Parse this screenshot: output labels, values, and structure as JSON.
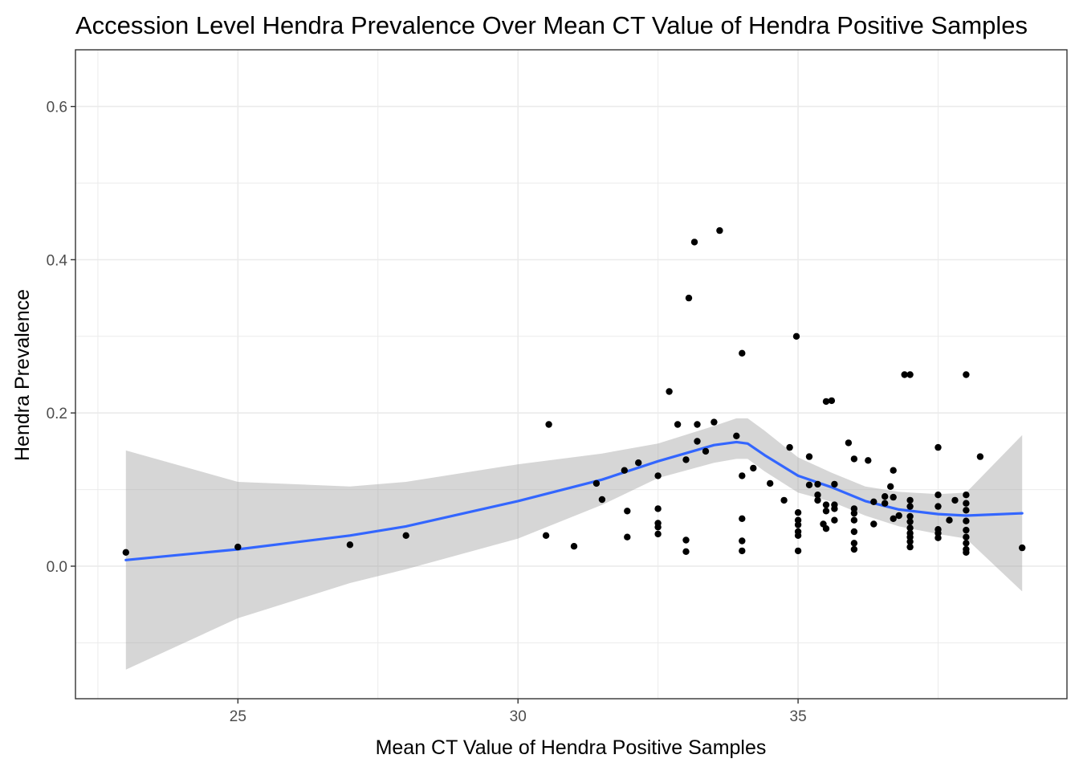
{
  "chart_data": {
    "type": "scatter",
    "title": "Accession Level Hendra Prevalence Over Mean CT Value of Hendra Positive Samples",
    "xlabel": "Mean CT Value of Hendra Positive Samples",
    "ylabel": "Hendra Prevalence",
    "xlim": [
      22.1,
      39.8
    ],
    "ylim": [
      -0.173,
      0.674
    ],
    "x_ticks": [
      25,
      30,
      35
    ],
    "x_tick_labels": [
      "25",
      "30",
      "35"
    ],
    "x_minor": [
      22.5,
      27.5,
      32.5,
      37.5
    ],
    "y_ticks": [
      0.0,
      0.2,
      0.4,
      0.6
    ],
    "y_tick_labels": [
      "0.0",
      "0.2",
      "0.4",
      "0.6"
    ],
    "y_minor": [
      -0.1,
      0.1,
      0.3,
      0.5
    ],
    "grid": true,
    "colors": {
      "points": "#000000",
      "smooth_line": "#3366ff",
      "ribbon": "#999999",
      "grid": "#ebebeb",
      "panel_border": "#333333",
      "tick_label": "#4d4d4d"
    },
    "points": [
      [
        23.0,
        0.018
      ],
      [
        25.0,
        0.025
      ],
      [
        27.0,
        0.028
      ],
      [
        28.0,
        0.04
      ],
      [
        30.5,
        0.04
      ],
      [
        30.55,
        0.185
      ],
      [
        31.0,
        0.026
      ],
      [
        31.4,
        0.108
      ],
      [
        31.5,
        0.087
      ],
      [
        31.9,
        0.125
      ],
      [
        31.95,
        0.072
      ],
      [
        31.95,
        0.038
      ],
      [
        32.15,
        0.135
      ],
      [
        32.5,
        0.118
      ],
      [
        32.5,
        0.075
      ],
      [
        32.5,
        0.056
      ],
      [
        32.5,
        0.051
      ],
      [
        32.5,
        0.042
      ],
      [
        32.7,
        0.228
      ],
      [
        32.85,
        0.185
      ],
      [
        33.0,
        0.139
      ],
      [
        33.0,
        0.034
      ],
      [
        33.0,
        0.019
      ],
      [
        33.05,
        0.35
      ],
      [
        33.15,
        0.423
      ],
      [
        33.2,
        0.163
      ],
      [
        33.2,
        0.185
      ],
      [
        33.35,
        0.15
      ],
      [
        33.5,
        0.188
      ],
      [
        33.6,
        0.438
      ],
      [
        33.9,
        0.17
      ],
      [
        34.0,
        0.278
      ],
      [
        34.0,
        0.118
      ],
      [
        34.0,
        0.062
      ],
      [
        34.0,
        0.033
      ],
      [
        34.0,
        0.02
      ],
      [
        34.2,
        0.128
      ],
      [
        34.5,
        0.108
      ],
      [
        34.75,
        0.086
      ],
      [
        34.85,
        0.155
      ],
      [
        34.97,
        0.3
      ],
      [
        35.0,
        0.07
      ],
      [
        35.0,
        0.06
      ],
      [
        35.0,
        0.054
      ],
      [
        35.0,
        0.045
      ],
      [
        35.0,
        0.04
      ],
      [
        35.0,
        0.02
      ],
      [
        35.2,
        0.143
      ],
      [
        35.2,
        0.106
      ],
      [
        35.35,
        0.107
      ],
      [
        35.35,
        0.093
      ],
      [
        35.35,
        0.086
      ],
      [
        35.45,
        0.055
      ],
      [
        35.5,
        0.215
      ],
      [
        35.5,
        0.08
      ],
      [
        35.5,
        0.072
      ],
      [
        35.5,
        0.049
      ],
      [
        35.6,
        0.216
      ],
      [
        35.65,
        0.107
      ],
      [
        35.65,
        0.08
      ],
      [
        35.65,
        0.075
      ],
      [
        35.65,
        0.06
      ],
      [
        35.9,
        0.161
      ],
      [
        36.0,
        0.14
      ],
      [
        36.0,
        0.075
      ],
      [
        36.0,
        0.069
      ],
      [
        36.0,
        0.06
      ],
      [
        36.0,
        0.045
      ],
      [
        36.0,
        0.03
      ],
      [
        36.0,
        0.022
      ],
      [
        36.25,
        0.138
      ],
      [
        36.35,
        0.084
      ],
      [
        36.35,
        0.055
      ],
      [
        36.55,
        0.091
      ],
      [
        36.55,
        0.082
      ],
      [
        36.65,
        0.104
      ],
      [
        36.7,
        0.125
      ],
      [
        36.7,
        0.09
      ],
      [
        36.7,
        0.062
      ],
      [
        36.8,
        0.066
      ],
      [
        36.9,
        0.25
      ],
      [
        37.0,
        0.25
      ],
      [
        37.0,
        0.086
      ],
      [
        37.0,
        0.078
      ],
      [
        37.0,
        0.065
      ],
      [
        37.0,
        0.058
      ],
      [
        37.0,
        0.05
      ],
      [
        37.0,
        0.043
      ],
      [
        37.0,
        0.038
      ],
      [
        37.0,
        0.032
      ],
      [
        37.0,
        0.025
      ],
      [
        37.5,
        0.155
      ],
      [
        37.5,
        0.093
      ],
      [
        37.5,
        0.078
      ],
      [
        37.5,
        0.048
      ],
      [
        37.5,
        0.043
      ],
      [
        37.5,
        0.037
      ],
      [
        37.7,
        0.06
      ],
      [
        37.8,
        0.086
      ],
      [
        38.0,
        0.25
      ],
      [
        38.0,
        0.093
      ],
      [
        38.0,
        0.082
      ],
      [
        38.0,
        0.073
      ],
      [
        38.0,
        0.059
      ],
      [
        38.0,
        0.047
      ],
      [
        38.0,
        0.038
      ],
      [
        38.0,
        0.03
      ],
      [
        38.0,
        0.022
      ],
      [
        38.0,
        0.018
      ],
      [
        38.25,
        0.143
      ],
      [
        39.0,
        0.024
      ]
    ],
    "smooth": {
      "x": [
        23.0,
        25.0,
        27.0,
        28.0,
        30.0,
        31.5,
        32.5,
        33.5,
        33.9,
        34.1,
        34.4,
        35.0,
        35.6,
        36.2,
        36.8,
        37.5,
        38.0,
        39.0
      ],
      "y": [
        0.008,
        0.022,
        0.04,
        0.052,
        0.085,
        0.113,
        0.137,
        0.158,
        0.162,
        0.16,
        0.145,
        0.118,
        0.103,
        0.085,
        0.074,
        0.068,
        0.066,
        0.069
      ],
      "lower": [
        -0.135,
        -0.068,
        -0.022,
        -0.004,
        0.036,
        0.08,
        0.115,
        0.135,
        0.14,
        0.14,
        0.124,
        0.096,
        0.084,
        0.066,
        0.052,
        0.042,
        0.036,
        -0.033
      ],
      "upper": [
        0.151,
        0.11,
        0.104,
        0.11,
        0.133,
        0.147,
        0.16,
        0.183,
        0.193,
        0.193,
        0.177,
        0.142,
        0.122,
        0.104,
        0.097,
        0.094,
        0.096,
        0.171
      ]
    }
  }
}
